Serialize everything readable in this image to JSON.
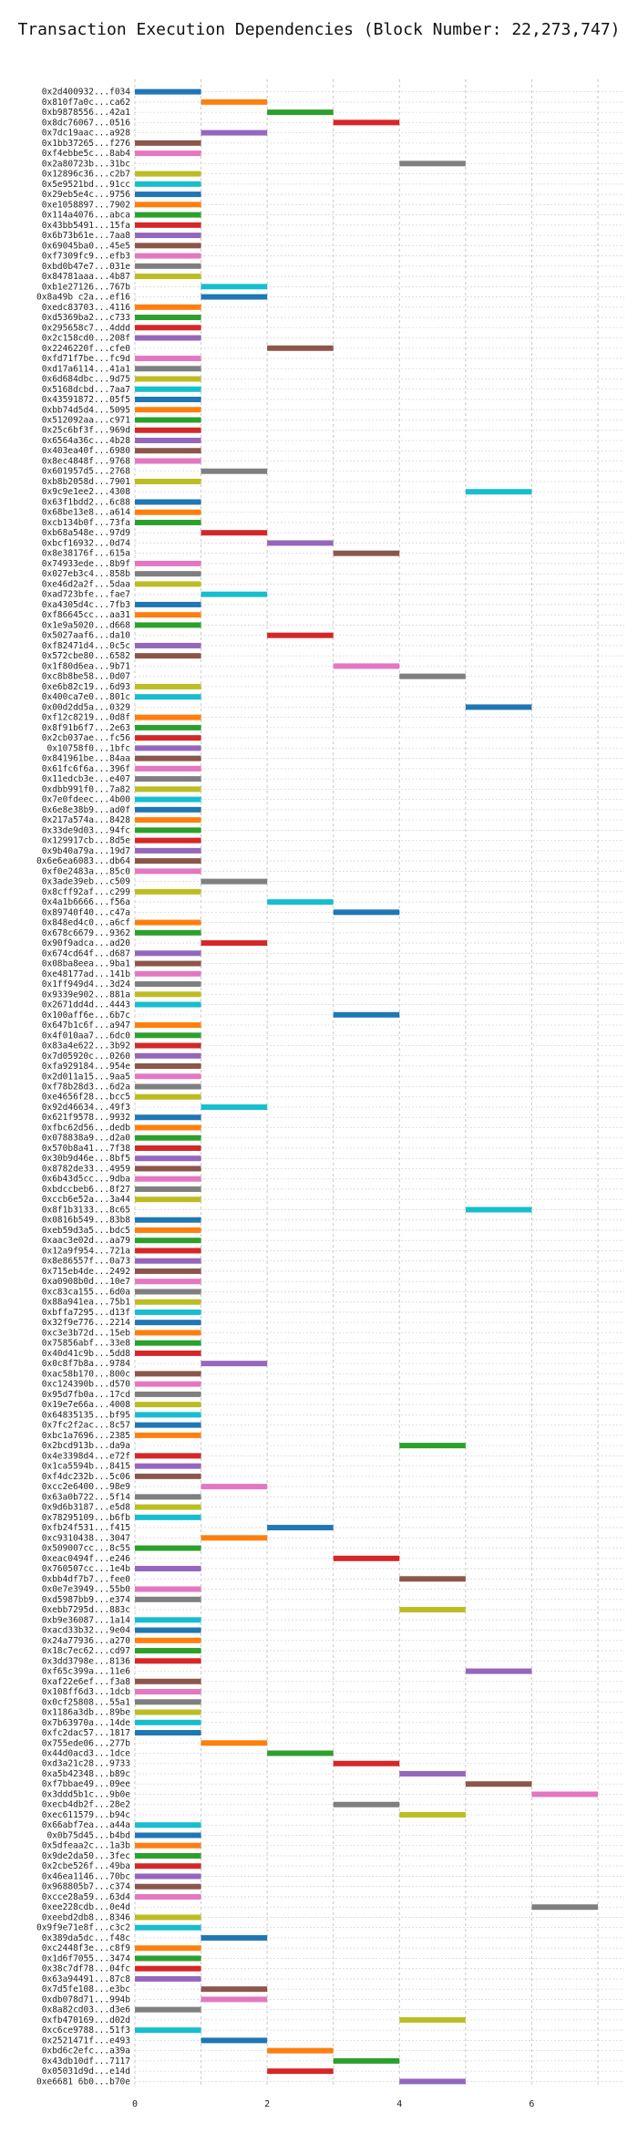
{
  "chart_data": {
    "type": "gantt",
    "title": "Transaction Execution Dependencies (Block Number: 22,273,747)",
    "xlabel": "",
    "ylabel": "",
    "xlim": [
      0,
      7.4
    ],
    "xticks": [
      0,
      2,
      4,
      6
    ],
    "grid": {
      "vertical": true,
      "horizontal": true,
      "style": "dotted"
    },
    "colors": [
      "#1f77b4",
      "#ff7f0e",
      "#2ca02c",
      "#d62728",
      "#9467bd",
      "#8c564b",
      "#e377c2",
      "#7f7f7f",
      "#bcbd22",
      "#17becf"
    ],
    "rows": [
      {
        "tx": "0x2d400932...f034",
        "start": 0
      },
      {
        "tx": "0x810f7a0c...ca62",
        "start": 1
      },
      {
        "tx": "0xb9878556...42a1",
        "start": 2
      },
      {
        "tx": "0x8dc76067...0516",
        "start": 3
      },
      {
        "tx": "0x7dc19aac...a928",
        "start": 1
      },
      {
        "tx": "0x1bb37265...f276",
        "start": 0
      },
      {
        "tx": "0xf4ebbe5c...8ab4",
        "start": 0
      },
      {
        "tx": "0x2a80723b...31bc",
        "start": 4
      },
      {
        "tx": "0x12896c36...c2b7",
        "start": 0
      },
      {
        "tx": "0x5e9521bd...91cc",
        "start": 0
      },
      {
        "tx": "0x29eb5e4c...9756",
        "start": 0
      },
      {
        "tx": "0xe1058897...7902",
        "start": 0
      },
      {
        "tx": "0x114a4076...abca",
        "start": 0
      },
      {
        "tx": "0x43bb5491...15fa",
        "start": 0
      },
      {
        "tx": "0x6b73b61e...7aa8",
        "start": 0
      },
      {
        "tx": "0x69045ba0...45e5",
        "start": 0
      },
      {
        "tx": "0xf7309fc9...efb3",
        "start": 0
      },
      {
        "tx": "0xbd0b47e7...031e",
        "start": 0
      },
      {
        "tx": "0x84781aaa...4b87",
        "start": 0
      },
      {
        "tx": "0xb1e27126...767b",
        "start": 1
      },
      {
        "tx": "0x8a49b c2a...ef16",
        "start": 1
      },
      {
        "tx": "0xedc83703...4116",
        "start": 0
      },
      {
        "tx": "0xd5369ba2...c733",
        "start": 0
      },
      {
        "tx": "0x295658c7...4ddd",
        "start": 0
      },
      {
        "tx": "0x2c158cd0...208f",
        "start": 0
      },
      {
        "tx": "0x2246220f...cfe0",
        "start": 2
      },
      {
        "tx": "0xfd71f7be...fc9d",
        "start": 0
      },
      {
        "tx": "0xd17a6114...41a1",
        "start": 0
      },
      {
        "tx": "0x6d684dbc...9d75",
        "start": 0
      },
      {
        "tx": "0x5168dcbd...7aa7",
        "start": 0
      },
      {
        "tx": "0x43591872...05f5",
        "start": 0
      },
      {
        "tx": "0xbb74d5d4...5095",
        "start": 0
      },
      {
        "tx": "0x512092aa...c971",
        "start": 0
      },
      {
        "tx": "0x25c6bf3f...969d",
        "start": 0
      },
      {
        "tx": "0x6564a36c...4b28",
        "start": 0
      },
      {
        "tx": "0x403ea40f...6980",
        "start": 0
      },
      {
        "tx": "0x8ec4848f...9768",
        "start": 0
      },
      {
        "tx": "0x601957d5...2768",
        "start": 1
      },
      {
        "tx": "0xb8b2058d...7901",
        "start": 0
      },
      {
        "tx": "0x9c9e1ee2...4308",
        "start": 5
      },
      {
        "tx": "0x63f1bdd2...6c88",
        "start": 0
      },
      {
        "tx": "0x68be13e8...a614",
        "start": 0
      },
      {
        "tx": "0xcb134b0f...73fa",
        "start": 0
      },
      {
        "tx": "0xb68a548e...97d9",
        "start": 1
      },
      {
        "tx": "0xbcf16932...0d74",
        "start": 2
      },
      {
        "tx": "0x8e38176f...615a",
        "start": 3
      },
      {
        "tx": "0x74933ede...8b9f",
        "start": 0
      },
      {
        "tx": "0x027eb3c4...858b",
        "start": 0
      },
      {
        "tx": "0xe46d2a2f...5daa",
        "start": 0
      },
      {
        "tx": "0xad723bfe...fae7",
        "start": 1
      },
      {
        "tx": "0xa4305d4c...7fb3",
        "start": 0
      },
      {
        "tx": "0xf86645cc...aa31",
        "start": 0
      },
      {
        "tx": "0x1e9a5020...d668",
        "start": 0
      },
      {
        "tx": "0x5027aaf6...da10",
        "start": 2
      },
      {
        "tx": "0xf82471d4...0c5c",
        "start": 0
      },
      {
        "tx": "0x572cbe80...6582",
        "start": 0
      },
      {
        "tx": "0x1f80d6ea...9b71",
        "start": 3
      },
      {
        "tx": "0xc8b8be58...0d07",
        "start": 4
      },
      {
        "tx": "0xe6b82c19...6d93",
        "start": 0
      },
      {
        "tx": "0x400ca7e0...801c",
        "start": 0
      },
      {
        "tx": "0x00d2dd5a...0329",
        "start": 5
      },
      {
        "tx": "0xf12c8219...0d8f",
        "start": 0
      },
      {
        "tx": "0x8f91b6f7...2e63",
        "start": 0
      },
      {
        "tx": "0x2cb037ae...fc56",
        "start": 0
      },
      {
        "tx": "0x10758f0...1bfc",
        "start": 0
      },
      {
        "tx": "0x841961be...84aa",
        "start": 0
      },
      {
        "tx": "0x61fc6f6a...396f",
        "start": 0
      },
      {
        "tx": "0x11edcb3e...e407",
        "start": 0
      },
      {
        "tx": "0xdbb991f0...7a82",
        "start": 0
      },
      {
        "tx": "0x7e0fdeec...4b00",
        "start": 0
      },
      {
        "tx": "0x6e8e38b9...ad0f",
        "start": 0
      },
      {
        "tx": "0x217a574a...8428",
        "start": 0
      },
      {
        "tx": "0x33de9d03...94fc",
        "start": 0
      },
      {
        "tx": "0x129917cb...8d5e",
        "start": 0
      },
      {
        "tx": "0x9b40a79a...19d7",
        "start": 0
      },
      {
        "tx": "0x6e6ea6083...db64",
        "start": 0
      },
      {
        "tx": "0xf0e2483a...85c0",
        "start": 0
      },
      {
        "tx": "0x3ade39eb...c509",
        "start": 1
      },
      {
        "tx": "0x8cff92af...c299",
        "start": 0
      },
      {
        "tx": "0x4a1b6666...f56a",
        "start": 2
      },
      {
        "tx": "0x89740f40...c47a",
        "start": 3
      },
      {
        "tx": "0x848ed4c0...a6cf",
        "start": 0
      },
      {
        "tx": "0x678c6679...9362",
        "start": 0
      },
      {
        "tx": "0x90f9adca...ad20",
        "start": 1
      },
      {
        "tx": "0x674cd64f...d687",
        "start": 0
      },
      {
        "tx": "0x08ba8eea...9ba1",
        "start": 0
      },
      {
        "tx": "0xe48177ad...141b",
        "start": 0
      },
      {
        "tx": "0x1ff949d4...3d24",
        "start": 0
      },
      {
        "tx": "0x9339e902...881a",
        "start": 0
      },
      {
        "tx": "0x2671dd4d...4443",
        "start": 0
      },
      {
        "tx": "0x100aff6e...6b7c",
        "start": 3
      },
      {
        "tx": "0x647b1c6f...a947",
        "start": 0
      },
      {
        "tx": "0x4f010aa7...6dc0",
        "start": 0
      },
      {
        "tx": "0x83a4e622...3b92",
        "start": 0
      },
      {
        "tx": "0x7d05920c...0260",
        "start": 0
      },
      {
        "tx": "0xfa929184...954e",
        "start": 0
      },
      {
        "tx": "0x2d011a15...9aa5",
        "start": 0
      },
      {
        "tx": "0xf78b28d3...6d2a",
        "start": 0
      },
      {
        "tx": "0xe4656f28...bcc5",
        "start": 0
      },
      {
        "tx": "0x92d46634...49f3",
        "start": 1
      },
      {
        "tx": "0x621f9578...9932",
        "start": 0
      },
      {
        "tx": "0xfbc62d56...dedb",
        "start": 0
      },
      {
        "tx": "0x078838a9...d2a0",
        "start": 0
      },
      {
        "tx": "0x570b8a41...7f38",
        "start": 0
      },
      {
        "tx": "0x30b9d46e...8bf5",
        "start": 0
      },
      {
        "tx": "0x8782de33...4959",
        "start": 0
      },
      {
        "tx": "0x6b43d5cc...9dba",
        "start": 0
      },
      {
        "tx": "0xbdccbeb6...8f27",
        "start": 0
      },
      {
        "tx": "0xccb6e52a...3a44",
        "start": 0
      },
      {
        "tx": "0x8f1b3133...8c65",
        "start": 5
      },
      {
        "tx": "0x0816b549...83b8",
        "start": 0
      },
      {
        "tx": "0xeb59d3a5...bdc5",
        "start": 0
      },
      {
        "tx": "0xaac3e02d...aa79",
        "start": 0
      },
      {
        "tx": "0x12a9f954...721a",
        "start": 0
      },
      {
        "tx": "0x8e86557f...0a73",
        "start": 0
      },
      {
        "tx": "0x715eb4de...2492",
        "start": 0
      },
      {
        "tx": "0xa0908b0d...10e7",
        "start": 0
      },
      {
        "tx": "0xc83ca155...6d0a",
        "start": 0
      },
      {
        "tx": "0x88a941ea...75b1",
        "start": 0
      },
      {
        "tx": "0xbffa7295...d13f",
        "start": 0
      },
      {
        "tx": "0x32f9e776...2214",
        "start": 0
      },
      {
        "tx": "0xc3e3b72d...15eb",
        "start": 0
      },
      {
        "tx": "0x75856abf...33e8",
        "start": 0
      },
      {
        "tx": "0x40d41c9b...5dd8",
        "start": 0
      },
      {
        "tx": "0x0c8f7b8a...9784",
        "start": 1
      },
      {
        "tx": "0xac58b170...800c",
        "start": 0
      },
      {
        "tx": "0xc124390b...d570",
        "start": 0
      },
      {
        "tx": "0x95d7fb0a...17cd",
        "start": 0
      },
      {
        "tx": "0x19e7e66a...4008",
        "start": 0
      },
      {
        "tx": "0x64835135...bf95",
        "start": 0
      },
      {
        "tx": "0x7fc2f2ac...8c57",
        "start": 0
      },
      {
        "tx": "0xbc1a7696...2385",
        "start": 0
      },
      {
        "tx": "0x2bcd913b...da9a",
        "start": 4
      },
      {
        "tx": "0x4e3398d4...e72f",
        "start": 0
      },
      {
        "tx": "0x1ca5594b...8415",
        "start": 0
      },
      {
        "tx": "0xf4dc232b...5c06",
        "start": 0
      },
      {
        "tx": "0xcc2e6400...98e9",
        "start": 1
      },
      {
        "tx": "0x63a0b722...5f14",
        "start": 0
      },
      {
        "tx": "0x9d6b3187...e5d8",
        "start": 0
      },
      {
        "tx": "0x78295109...b6fb",
        "start": 0
      },
      {
        "tx": "0xfb24f531...f415",
        "start": 2
      },
      {
        "tx": "0xc9310438...3047",
        "start": 1
      },
      {
        "tx": "0x509007cc...8c55",
        "start": 0
      },
      {
        "tx": "0xeac0494f...e246",
        "start": 3
      },
      {
        "tx": "0x760507cc...1e4b",
        "start": 0
      },
      {
        "tx": "0xbb4df7b7...fee0",
        "start": 4
      },
      {
        "tx": "0x0e7e3949...55b0",
        "start": 0
      },
      {
        "tx": "0xd5987bb9...e374",
        "start": 0
      },
      {
        "tx": "0xebb7295d...883c",
        "start": 4
      },
      {
        "tx": "0xb9e36087...1a14",
        "start": 0
      },
      {
        "tx": "0xacd33b32...9e04",
        "start": 0
      },
      {
        "tx": "0x24a77936...a270",
        "start": 0
      },
      {
        "tx": "0x18c7ec62...cd97",
        "start": 0
      },
      {
        "tx": "0x3dd3798e...8136",
        "start": 0
      },
      {
        "tx": "0xf65c399a...11e6",
        "start": 5
      },
      {
        "tx": "0xaf22e6ef...f3a8",
        "start": 0
      },
      {
        "tx": "0x108ff6d3...1dcb",
        "start": 0
      },
      {
        "tx": "0x0cf25808...55a1",
        "start": 0
      },
      {
        "tx": "0x1186a3db...89be",
        "start": 0
      },
      {
        "tx": "0x7b63970a...14de",
        "start": 0
      },
      {
        "tx": "0xfc2dac57...1817",
        "start": 0
      },
      {
        "tx": "0x755ede06...277b",
        "start": 1
      },
      {
        "tx": "0x44d0acd3...1dce",
        "start": 2
      },
      {
        "tx": "0xd3a21c28...9733",
        "start": 3
      },
      {
        "tx": "0xa5b42348...b89c",
        "start": 4
      },
      {
        "tx": "0xf7bbae49...09ee",
        "start": 5
      },
      {
        "tx": "0x3ddd5b1c...9b0e",
        "start": 6
      },
      {
        "tx": "0xecb4db2f...28e2",
        "start": 3
      },
      {
        "tx": "0xec611579...b94c",
        "start": 4
      },
      {
        "tx": "0x66abf7ea...a44a",
        "start": 0
      },
      {
        "tx": "0x0b75d45...b4bd",
        "start": 0
      },
      {
        "tx": "0x5dfeaa2c...1a3b",
        "start": 0
      },
      {
        "tx": "0x9de2da50...3fec",
        "start": 0
      },
      {
        "tx": "0x2cbe526f...49ba",
        "start": 0
      },
      {
        "tx": "0x46ea1146...70bc",
        "start": 0
      },
      {
        "tx": "0x968805b7...c374",
        "start": 0
      },
      {
        "tx": "0xcce28a59...63d4",
        "start": 0
      },
      {
        "tx": "0xee228cdb...0e4d",
        "start": 6
      },
      {
        "tx": "0xeebd2db8...8346",
        "start": 0
      },
      {
        "tx": "0x9f9e71e8f...c3c2",
        "start": 0
      },
      {
        "tx": "0x389da5dc...f48c",
        "start": 1
      },
      {
        "tx": "0xc2448f3e...c8f9",
        "start": 0
      },
      {
        "tx": "0x1d6f7055...3474",
        "start": 0
      },
      {
        "tx": "0x38c7df78...04fc",
        "start": 0
      },
      {
        "tx": "0x63a94491...87c8",
        "start": 0
      },
      {
        "tx": "0x7d5fe108...e3bc",
        "start": 1
      },
      {
        "tx": "0xdb078d71...994b",
        "start": 1
      },
      {
        "tx": "0x8a82cd03...d3e6",
        "start": 0
      },
      {
        "tx": "0xfb470169...d02d",
        "start": 4
      },
      {
        "tx": "0xc6ce9788...51f3",
        "start": 0
      },
      {
        "tx": "0x2521471f...e493",
        "start": 1
      },
      {
        "tx": "0xbd6c2efc...a39a",
        "start": 2
      },
      {
        "tx": "0x43db10df...7117",
        "start": 3
      },
      {
        "tx": "0x05031d9d...e14d",
        "start": 2
      },
      {
        "tx": "0xe6681 6b0...b70e",
        "start": 4
      }
    ]
  }
}
